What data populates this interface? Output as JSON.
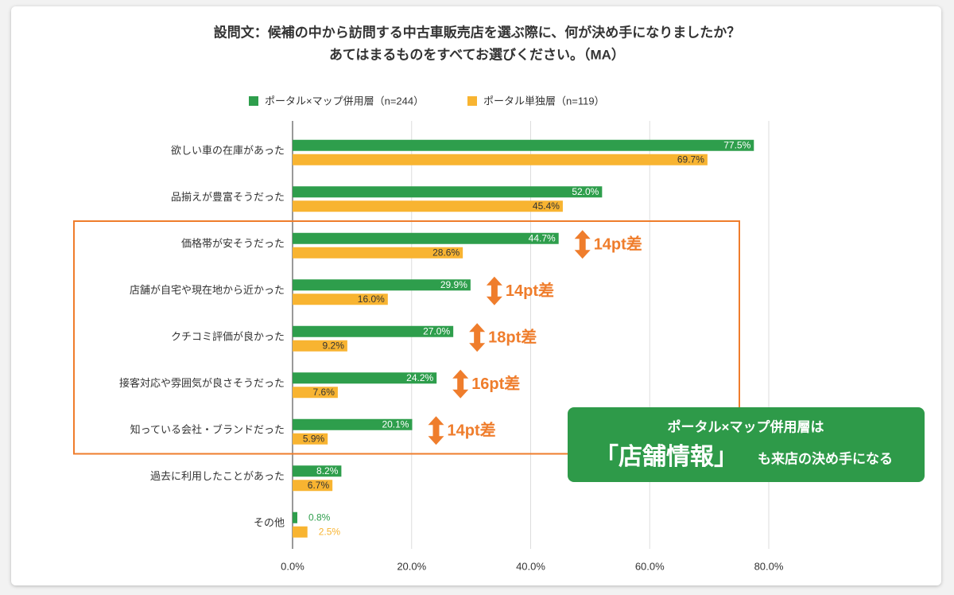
{
  "chart_data": {
    "type": "hbar",
    "title": "設問文：候補の中から訪問する中古車販売店を選ぶ際に、何が決め手になりましたか？",
    "subtitle": "あてはまるものをすべてお選びください。（MA）",
    "categories": [
      "欲しい車の在庫があった",
      "品揃えが豊富そうだった",
      "価格帯が安そうだった",
      "店舗が自宅や現在地から近かった",
      "クチコミ評価が良かった",
      "接客対応や雰囲気が良さそうだった",
      "知っている会社・ブランドだった",
      "過去に利用したことがあった",
      "その他"
    ],
    "series": [
      {
        "name": "ポータル×マップ併用層（n=244）",
        "color": "#2e9e4c",
        "values": [
          77.5,
          52.0,
          44.7,
          29.9,
          27.0,
          24.2,
          20.1,
          8.2,
          0.8
        ],
        "value_labels": [
          "77.5%",
          "52.0%",
          "44.7%",
          "29.9%",
          "27.0%",
          "24.2%",
          "20.1%",
          "8.2%",
          "0.8%"
        ]
      },
      {
        "name": "ポータル単独層（n=119）",
        "color": "#f8b431",
        "values": [
          69.7,
          45.4,
          28.6,
          16.0,
          9.2,
          7.6,
          5.9,
          6.7,
          2.5
        ],
        "value_labels": [
          "69.7%",
          "45.4%",
          "28.6%",
          "16.0%",
          "9.2%",
          "7.6%",
          "5.9%",
          "6.7%",
          "2.5%"
        ]
      }
    ],
    "xlim": [
      0,
      80
    ],
    "xticks": [
      {
        "value": 0,
        "label": "0.0%"
      },
      {
        "value": 20,
        "label": "20.0%"
      },
      {
        "value": 40,
        "label": "40.0%"
      },
      {
        "value": 60,
        "label": "60.0%"
      },
      {
        "value": 80,
        "label": "80.0%"
      }
    ],
    "grid": true,
    "legend": "top",
    "annotations": [
      "14pt差",
      "14pt差",
      "18pt差",
      "16pt差",
      "14pt差"
    ],
    "callout": {
      "line1": "ポータル×マップ併用層は",
      "highlight": "「店舗情報」",
      "line2": "も来店の決め手になる"
    }
  }
}
